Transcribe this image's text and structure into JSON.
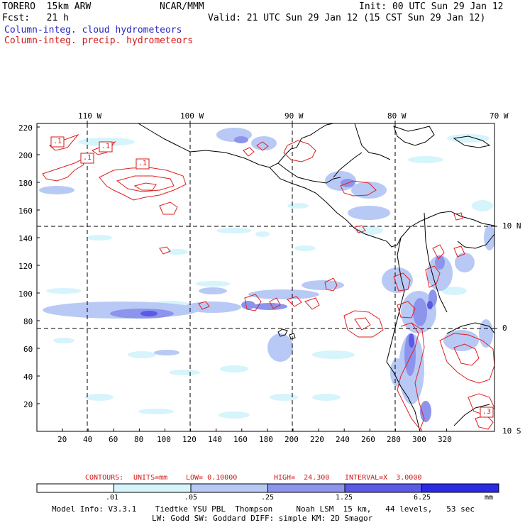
{
  "header": {
    "model": "TORERO  15km ARW",
    "org": "NCAR/MMM",
    "init": "Init: 00 UTC Sun 29 Jan 12",
    "fcst": "Fcst:   21 h",
    "valid": "Valid: 21 UTC Sun 29 Jan 12 (15 CST Sun 29 Jan 12)",
    "field1": "Column-integ. cloud hydrometeors",
    "field2": "Column-integ. precip. hydrometeors"
  },
  "colors": {
    "cloud_text": "#2626c8",
    "precip_text": "#d01818",
    "precip_contour": "#e02020",
    "coast": "#000000"
  },
  "axes": {
    "top_lon": [
      "110 W",
      "100 W",
      "90 W",
      "80 W",
      "70 W"
    ],
    "right_lat": [
      "10 N",
      "0",
      "10 S"
    ],
    "y_ticks": [
      "220",
      "200",
      "180",
      "160",
      "140",
      "120",
      "100",
      "80",
      "60",
      "40",
      "20"
    ],
    "x_ticks": [
      "20",
      "40",
      "60",
      "80",
      "100",
      "120",
      "140",
      "160",
      "180",
      "200",
      "220",
      "240",
      "260",
      "280",
      "300",
      "320"
    ]
  },
  "contour_labels": [
    ".1",
    ".1",
    ".1",
    ".1",
    ".3"
  ],
  "contours_line": {
    "prefix": "CONTOURS:",
    "units": "UNITS=mm",
    "low": "LOW= 0.10000",
    "high": "HIGH=  24.300",
    "interval": "INTERVAL=X  3.0000"
  },
  "colorbar": {
    "ticks": [
      ".01",
      ".05",
      ".25",
      "1.25",
      "6.25"
    ],
    "unit": "mm",
    "colors": [
      "#ffffff",
      "#d6f4fb",
      "#b8c9f5",
      "#8c94ec",
      "#5a5ae6",
      "#2a2ae4"
    ]
  },
  "footer": {
    "line1": "Model Info: V3.3.1    Tiedtke YSU PBL  Thompson     Noah LSM  15 km,   44 levels,   53 sec",
    "line2": "LW: Godd SW: Goddard DIFF: simple KM: 2D Smagor"
  }
}
